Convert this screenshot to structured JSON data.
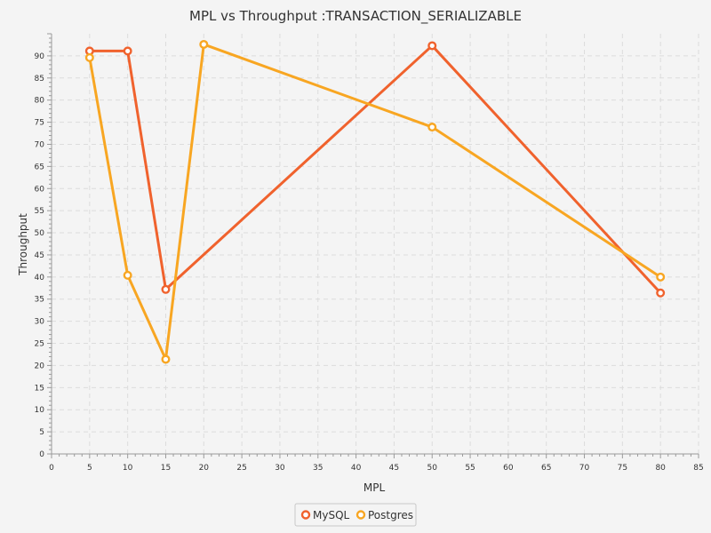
{
  "chart_data": {
    "type": "line",
    "title": "MPL vs Throughput :TRANSACTION_SERIALIZABLE",
    "xlabel": "MPL",
    "ylabel": "Throughput",
    "xlim": [
      0,
      85
    ],
    "ylim": [
      0,
      95
    ],
    "xticks": [
      0,
      5,
      10,
      15,
      20,
      25,
      30,
      35,
      40,
      45,
      50,
      55,
      60,
      65,
      70,
      75,
      80,
      85
    ],
    "yticks": [
      0,
      5,
      10,
      15,
      20,
      25,
      30,
      35,
      40,
      45,
      50,
      55,
      60,
      65,
      70,
      75,
      80,
      85,
      90
    ],
    "grid": true,
    "legend": "bottom-center",
    "series": [
      {
        "name": "MySQL",
        "color": "#f0622d",
        "x": [
          5,
          10,
          15,
          50,
          80
        ],
        "y": [
          91.1,
          91.1,
          37.2,
          92.3,
          36.4
        ]
      },
      {
        "name": "Postgres",
        "color": "#f8a622",
        "x": [
          5,
          10,
          15,
          20,
          50,
          80
        ],
        "y": [
          89.6,
          40.4,
          21.4,
          92.6,
          73.9,
          40.0
        ]
      }
    ]
  }
}
